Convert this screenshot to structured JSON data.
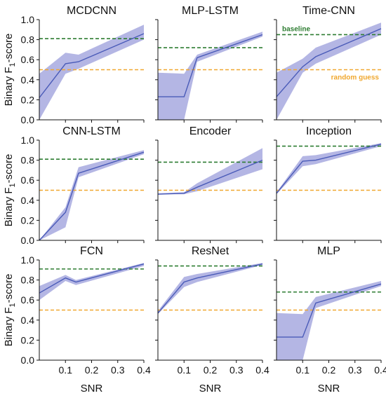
{
  "chart_data": {
    "type": "line",
    "xlabel": "SNR",
    "ylabel_prefix": "Binary F",
    "ylabel_sub": "1",
    "ylabel_suffix": "-score",
    "xlim": [
      0,
      0.4
    ],
    "ylim": [
      0,
      1.0
    ],
    "xticks": [
      0.1,
      0.2,
      0.3,
      0.4
    ],
    "xtick_labels": [
      "0.1",
      "0.2",
      "0.3",
      "0.4"
    ],
    "yticks": [
      0,
      0.2,
      0.4,
      0.6,
      0.8,
      1.0
    ],
    "ytick_labels": [
      "0.0",
      "0.2",
      "0.4",
      "0.6",
      "0.8",
      "1.0"
    ],
    "colors": {
      "line": "#4a5bb8",
      "band": "#8c8fd6",
      "baseline": "#2e7d32",
      "random": "#f0a830"
    },
    "random_guess": 0.5,
    "annotations": {
      "baseline": "baseline",
      "random": "random guess"
    },
    "panels": [
      {
        "title": "MCDCNN",
        "baseline": 0.81,
        "x": [
          0,
          0.1,
          0.15,
          0.4
        ],
        "mean": [
          0.22,
          0.56,
          0.58,
          0.86
        ],
        "lower": [
          0.0,
          0.46,
          0.51,
          0.8
        ],
        "upper": [
          0.46,
          0.67,
          0.65,
          0.95
        ]
      },
      {
        "title": "MLP-LSTM",
        "baseline": 0.72,
        "x": [
          0,
          0.1,
          0.15,
          0.4
        ],
        "mean": [
          0.23,
          0.23,
          0.62,
          0.85
        ],
        "lower": [
          0.0,
          0.0,
          0.58,
          0.83
        ],
        "upper": [
          0.47,
          0.46,
          0.65,
          0.88
        ]
      },
      {
        "title": "Time-CNN",
        "baseline": 0.85,
        "x": [
          0,
          0.1,
          0.15,
          0.4
        ],
        "mean": [
          0.23,
          0.53,
          0.63,
          0.91
        ],
        "lower": [
          0.0,
          0.47,
          0.56,
          0.85
        ],
        "upper": [
          0.47,
          0.61,
          0.72,
          0.97
        ]
      },
      {
        "title": "CNN-LSTM",
        "baseline": 0.81,
        "x": [
          0,
          0.1,
          0.15,
          0.4
        ],
        "mean": [
          0.0,
          0.28,
          0.67,
          0.88
        ],
        "lower": [
          0.0,
          0.13,
          0.63,
          0.86
        ],
        "upper": [
          0.0,
          0.33,
          0.73,
          0.9
        ]
      },
      {
        "title": "Encoder",
        "baseline": 0.78,
        "x": [
          0,
          0.1,
          0.15,
          0.4
        ],
        "mean": [
          0.46,
          0.47,
          0.53,
          0.8
        ],
        "lower": [
          0.46,
          0.46,
          0.49,
          0.71
        ],
        "upper": [
          0.47,
          0.48,
          0.57,
          0.92
        ]
      },
      {
        "title": "Inception",
        "baseline": 0.94,
        "x": [
          0,
          0.1,
          0.15,
          0.4
        ],
        "mean": [
          0.47,
          0.79,
          0.8,
          0.96
        ],
        "lower": [
          0.46,
          0.74,
          0.76,
          0.94
        ],
        "upper": [
          0.48,
          0.84,
          0.85,
          0.97
        ]
      },
      {
        "title": "FCN",
        "baseline": 0.91,
        "x": [
          0,
          0.1,
          0.14,
          0.4
        ],
        "mean": [
          0.67,
          0.82,
          0.78,
          0.96
        ],
        "lower": [
          0.6,
          0.79,
          0.75,
          0.94
        ],
        "upper": [
          0.74,
          0.85,
          0.8,
          0.97
        ]
      },
      {
        "title": "ResNet",
        "baseline": 0.94,
        "x": [
          0,
          0.1,
          0.15,
          0.4
        ],
        "mean": [
          0.47,
          0.78,
          0.82,
          0.96
        ],
        "lower": [
          0.46,
          0.73,
          0.78,
          0.95
        ],
        "upper": [
          0.49,
          0.83,
          0.86,
          0.97
        ]
      },
      {
        "title": "MLP",
        "baseline": 0.68,
        "x": [
          0,
          0.1,
          0.15,
          0.4
        ],
        "mean": [
          0.23,
          0.23,
          0.57,
          0.76
        ],
        "lower": [
          0.0,
          0.0,
          0.52,
          0.74
        ],
        "upper": [
          0.47,
          0.46,
          0.63,
          0.79
        ]
      }
    ]
  }
}
